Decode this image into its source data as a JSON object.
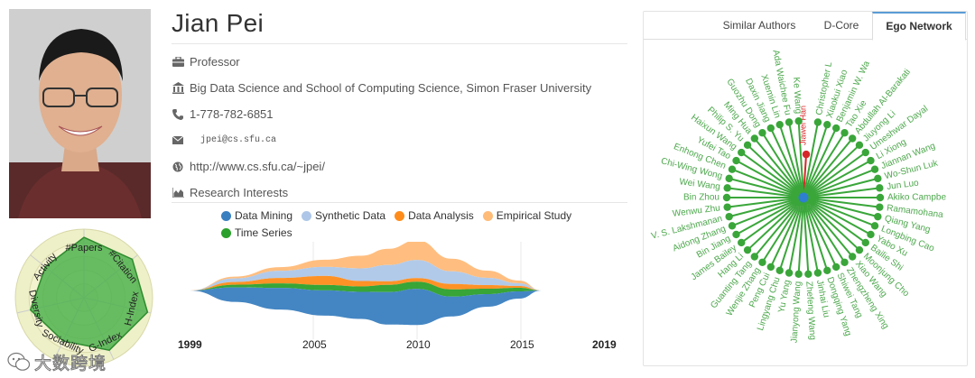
{
  "profile": {
    "name": "Jian Pei",
    "position": "Professor",
    "affiliation": "Big Data Science and School of Computing Science, Simon Fraser University",
    "phone": "1-778-782-6851",
    "email": "jpei@cs.sfu.ca",
    "homepage": "http://www.cs.sfu.ca/~jpei/",
    "research_interests_label": "Research Interests"
  },
  "radar": {
    "axes": [
      "#Papers",
      "#Citation",
      "H-Index",
      "G-Index",
      "Sociability",
      "Diversity",
      "Activity"
    ],
    "values": [
      0.88,
      0.9,
      0.95,
      0.85,
      0.7,
      0.8,
      0.72
    ]
  },
  "watermark": {
    "text": "大数跨境"
  },
  "chart_data": {
    "type": "area",
    "series": [
      {
        "name": "Data Mining",
        "color": "#3a7fc0"
      },
      {
        "name": "Synthetic Data",
        "color": "#aec7e8"
      },
      {
        "name": "Data Analysis",
        "color": "#ff8c1a"
      },
      {
        "name": "Empirical Study",
        "color": "#ffbb78"
      },
      {
        "name": "Time Series",
        "color": "#2ca02c"
      }
    ],
    "x_range": [
      1999,
      2019
    ],
    "tick_labels": [
      "1999",
      "2005",
      "2010",
      "2015",
      "2019"
    ],
    "bold_ticks": [
      "1999",
      "2019"
    ],
    "grid": true
  },
  "tabs": [
    {
      "label": "Similar Authors",
      "active": false
    },
    {
      "label": "D-Core",
      "active": false
    },
    {
      "label": "Ego Network",
      "active": true
    }
  ],
  "ego": {
    "center": "Jian Pei",
    "highlight": "Jiawei Han",
    "highlight_color": "#d62728",
    "center_color": "#2f7fd0",
    "edge_color": "#3aa63a",
    "label_color": "#4ea84e",
    "nodes": [
      "Jiawei Han",
      "Christopher L",
      "Xiaokui Xiao",
      "Benjamin W. Wa",
      "Tao Xie",
      "Abdullah Al-Barakati",
      "Jiuyong Li",
      "Umeshwar Dayal",
      "Li Xiong",
      "Jiannan Wang",
      "Wo-Shun Luk",
      "Jun Luo",
      "Akiko Campbe",
      "Ramamohana",
      "Qiang Yang",
      "Longbing Cao",
      "Yabo Xu",
      "Bailie Shi",
      "Moonjung Cho",
      "Xiao Wang",
      "Zhengzheng Xing",
      "Shiwei Tang",
      "Dongqing Yang",
      "Jinhai Liu",
      "Zhefeng Wang",
      "Jianyong Wang",
      "Yu Yang",
      "Lingyang Chu",
      "Peng Cui",
      "Wenjie Zhang",
      "Guanting Tang",
      "Hang Li",
      "James Bailey",
      "Bin Jiang",
      "Aidong Zhang",
      "V. S. Lakshmanan",
      "Wenwu Zhu",
      "Bin Zhou",
      "Wei Wang",
      "Chi-Wing Wong",
      "Enhong Chen",
      "Yufei Tao",
      "Haixun Wang",
      "Philip S. Yu",
      "Ming Hua",
      "Guozhu Dong",
      "Daxin Jiang",
      "Xuemin Lin",
      "Ada Waichee Fu",
      "Ke Wang"
    ]
  }
}
